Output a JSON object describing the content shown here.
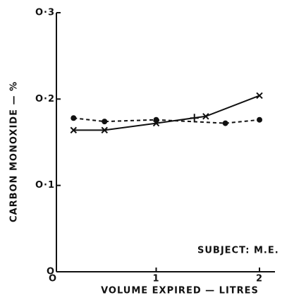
{
  "chart_data": {
    "type": "line",
    "xlabel": "VOLUME EXPIRED — LITRES",
    "ylabel": "CARBON MONOXIDE — %",
    "annotation": "SUBJECT: M.E.",
    "xlim": [
      0,
      2.15
    ],
    "ylim": [
      0,
      0.3
    ],
    "xticks": [
      {
        "value": 0,
        "label": "O"
      },
      1,
      2
    ],
    "yticks": [
      {
        "value": 0,
        "label": "O"
      },
      {
        "value": 0.1,
        "label": "O·1"
      },
      {
        "value": 0.2,
        "label": "O·2"
      },
      {
        "value": 0.3,
        "label": "O·3"
      }
    ],
    "series": [
      {
        "color": "#111111",
        "marker": "circle",
        "linestyle": "dashed",
        "x": [
          0.2,
          0.5,
          1.0,
          1.67,
          2.0
        ],
        "values": [
          0.178,
          0.174,
          0.176,
          0.172,
          0.176
        ]
      },
      {
        "color": "#111111",
        "marker": "x",
        "linestyle": "solid",
        "x": [
          0.2,
          0.5,
          1.0,
          1.48,
          2.0
        ],
        "values": [
          0.164,
          0.164,
          0.172,
          0.18,
          0.204
        ]
      },
      {
        "color": "#111111",
        "marker": "plus",
        "linestyle": "none",
        "x": [
          1.37
        ],
        "values": [
          0.178
        ]
      }
    ]
  }
}
